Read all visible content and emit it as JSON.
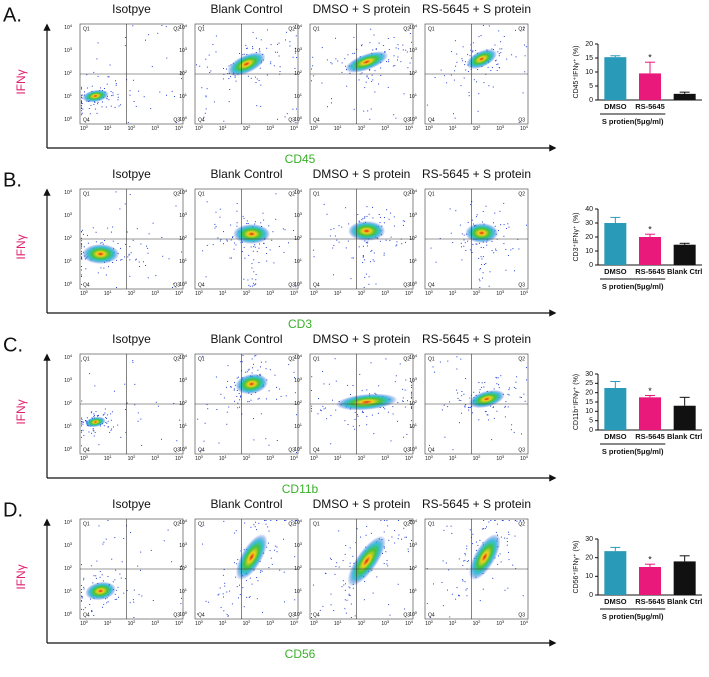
{
  "figure": {
    "panels": [
      {
        "label": "A.",
        "column_titles": [
          "Isotpye",
          "Blank Control",
          "DMSO + S protein",
          "RS-5645 + S protein"
        ],
        "y_axis_label": "IFNγ",
        "x_axis_label": "CD45"
      },
      {
        "label": "B.",
        "column_titles": [
          "Isotpye",
          "Blank Control",
          "DMSO + S protein",
          "RS-5645 + S protein"
        ],
        "y_axis_label": "IFNγ",
        "x_axis_label": "CD3"
      },
      {
        "label": "C.",
        "column_titles": [
          "Isotpye",
          "Blank Control",
          "DMSO + S protein",
          "RS-5645 + S protein"
        ],
        "y_axis_label": "IFNγ",
        "x_axis_label": "CD11b"
      },
      {
        "label": "D.",
        "column_titles": [
          "Isotpye",
          "Blank Control",
          "DMSO + S protein",
          "RS-5645 + S protein"
        ],
        "y_axis_label": "IFNγ",
        "x_axis_label": "CD56"
      }
    ],
    "quadrant_labels": [
      "Q1",
      "Q2",
      "Q3",
      "Q4"
    ],
    "flow_tick_base": "10",
    "flow_tick_exponents": [
      "0",
      "1",
      "2",
      "3",
      "4"
    ]
  },
  "chart_data": [
    {
      "type": "bar",
      "ylabel": "CD45⁺IFNγ⁺ (%)",
      "xlabel": "S protien(5μg/ml)",
      "categories": [
        "DMSO",
        "RS-5645",
        null
      ],
      "values": [
        15.3,
        9.5,
        2.2
      ],
      "errors": [
        0.5,
        4,
        0.6
      ],
      "colors": [
        "#2a9ab9",
        "#e8197a",
        "#111111"
      ],
      "value_annotations": [
        null,
        "*",
        null
      ],
      "ylim": [
        0,
        20
      ],
      "yticks": [
        0,
        5,
        10,
        15,
        20
      ]
    },
    {
      "type": "bar",
      "ylabel": "CD3⁺IFNγ⁺ (%)",
      "xlabel": "S protien(5μg/ml)",
      "categories": [
        "DMSO",
        "RS-5645",
        "Blank Ctrl"
      ],
      "values": [
        30,
        20,
        14.5
      ],
      "errors": [
        4,
        2,
        1
      ],
      "colors": [
        "#2a9ab9",
        "#e8197a",
        "#111111"
      ],
      "value_annotations": [
        null,
        "*",
        null
      ],
      "ylim": [
        0,
        40
      ],
      "yticks": [
        0,
        10,
        20,
        30,
        40
      ]
    },
    {
      "type": "bar",
      "ylabel": "CD11b⁺IFNγ⁺ (%)",
      "xlabel": "S protien(5μg/ml)",
      "categories": [
        "DMSO",
        "RS-5645",
        "Blank Ctrl"
      ],
      "values": [
        22.5,
        17.5,
        13
      ],
      "errors": [
        3.5,
        1,
        4.5
      ],
      "colors": [
        "#2a9ab9",
        "#e8197a",
        "#111111"
      ],
      "value_annotations": [
        null,
        "*",
        null
      ],
      "ylim": [
        0,
        30
      ],
      "yticks": [
        0,
        5,
        10,
        15,
        20,
        25,
        30
      ]
    },
    {
      "type": "bar",
      "ylabel": "CD56⁺IFNγ⁺ (%)",
      "xlabel": "S protien(5μg/ml)",
      "categories": [
        "DMSO",
        "RS-5645",
        "Blank Ctrl"
      ],
      "values": [
        23.5,
        15,
        18
      ],
      "errors": [
        2,
        1.5,
        3
      ],
      "colors": [
        "#2a9ab9",
        "#e8197a",
        "#111111"
      ],
      "value_annotations": [
        null,
        "*",
        null
      ],
      "ylim": [
        0,
        30
      ],
      "yticks": [
        0,
        10,
        20,
        30
      ]
    }
  ]
}
